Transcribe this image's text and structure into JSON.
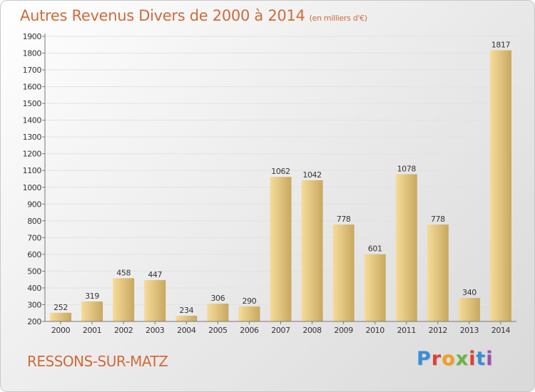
{
  "header": {
    "title": "Autres Revenus Divers de 2000 à 2014",
    "unit": "(en milliers d'€)"
  },
  "footer": {
    "place": "RESSONS-SUR-MATZ",
    "logo": "Proxiti",
    "logo_colors": [
      "#3a8ed6",
      "#e4402f",
      "#f0a020",
      "#6db33f",
      "#e4402f",
      "#3a8ed6",
      "#9c4fb4"
    ]
  },
  "colors": {
    "bar_light": "#f6dc9a",
    "bar_dark": "#c8a860",
    "accent": "#d06a3a"
  },
  "chart_data": {
    "type": "bar",
    "title": "Autres Revenus Divers de 2000 à 2014",
    "xlabel": "",
    "ylabel": "",
    "categories": [
      "2000",
      "2001",
      "2002",
      "2003",
      "2004",
      "2005",
      "2006",
      "2007",
      "2008",
      "2009",
      "2010",
      "2011",
      "2012",
      "2013",
      "2014"
    ],
    "values": [
      252,
      319,
      458,
      447,
      234,
      306,
      290,
      1062,
      1042,
      778,
      601,
      1078,
      778,
      340,
      1817
    ],
    "ylim": [
      200,
      1900
    ],
    "yticks": [
      200,
      300,
      400,
      500,
      600,
      700,
      800,
      900,
      1000,
      1100,
      1200,
      1300,
      1400,
      1500,
      1600,
      1700,
      1800,
      1900
    ],
    "grid": true,
    "legend": "none"
  }
}
